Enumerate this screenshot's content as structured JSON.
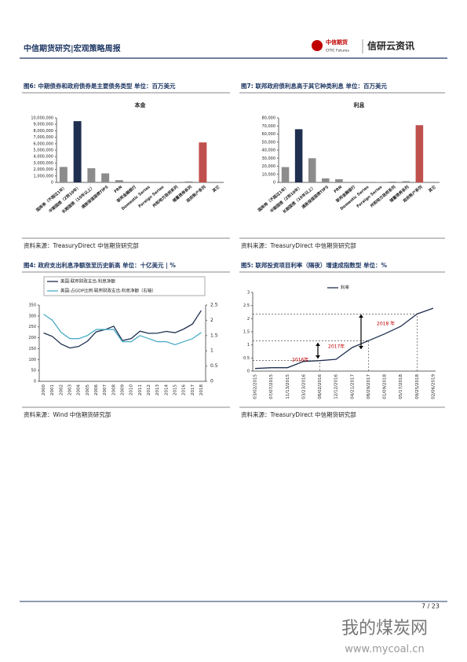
{
  "header": {
    "title": "中信期货研究|宏观策略周报",
    "logo_cn": "中信期货",
    "logo_en": "CITIC Futures",
    "brand": "信研云资讯"
  },
  "chart_data": [
    {
      "type": "bar",
      "title": "图6: 中期债券和政府债券是主要债务类型   单位：百万美元",
      "subtitle": "本金",
      "categories": [
        "国库券（不超过1年）",
        "中期国债（2到10年）",
        "长期国债（10年以上）",
        "通胀保值国债TIPS",
        "FRN",
        "联邦金融银行",
        "Domestic Series",
        "Foreign Series",
        "州和地方政府系列",
        "储蓄债券系列",
        "政府账户系列",
        "其它"
      ],
      "values": [
        2400000,
        9500000,
        2200000,
        1400000,
        350000,
        0,
        0,
        0,
        60000,
        150000,
        6200000,
        0
      ],
      "colors": [
        "#8c8c8c",
        "#1f2f4f",
        "#8c8c8c",
        "#8c8c8c",
        "#8c8c8c",
        "#8c8c8c",
        "#8c8c8c",
        "#8c8c8c",
        "#8c8c8c",
        "#8c8c8c",
        "#c0504d",
        "#8c8c8c"
      ],
      "ylim": [
        0,
        10000000
      ],
      "yticks": [
        0,
        {
          "value": 1000000,
          "label": "1,000,000"
        },
        {
          "value": 2000000,
          "label": "2,000,000"
        },
        {
          "value": 3000000,
          "label": "3,000,000"
        },
        {
          "value": 4000000,
          "label": "4,000,000"
        },
        {
          "value": 5000000,
          "label": "5,000,000"
        },
        {
          "value": 6000000,
          "label": "6,000,000"
        },
        {
          "value": 7000000,
          "label": "7,000,000"
        },
        {
          "value": 8000000,
          "label": "8,000,000"
        },
        {
          "value": 9000000,
          "label": "9,000,000"
        },
        {
          "value": 10000000,
          "label": "10,000,000"
        }
      ],
      "source": "资料来源：TreasuryDirect  中信期货研究部"
    },
    {
      "type": "bar",
      "title": "图7: 联邦政府债利息高于其它种类利息   单位：百万美元",
      "subtitle": "利息",
      "categories": [
        "国库券（不超过1年）",
        "中期国债（2到10年）",
        "长期国债（10年以上）",
        "通胀保值国债TIPS",
        "FRN",
        "联邦金融银行",
        "Domestic Series",
        "Foreign Series",
        "州和地方政府系列",
        "储蓄债券系列",
        "政府账户系列",
        "其它"
      ],
      "values": [
        19000,
        66000,
        30000,
        5000,
        4000,
        0,
        0,
        500,
        1000,
        1500,
        71000,
        0
      ],
      "colors": [
        "#8c8c8c",
        "#1f2f4f",
        "#8c8c8c",
        "#8c8c8c",
        "#8c8c8c",
        "#8c8c8c",
        "#8c8c8c",
        "#8c8c8c",
        "#8c8c8c",
        "#8c8c8c",
        "#c0504d",
        "#8c8c8c"
      ],
      "ylim": [
        0,
        80000
      ],
      "yticks": [
        0,
        {
          "value": 10000,
          "label": "10,000"
        },
        {
          "value": 20000,
          "label": "20,000"
        },
        {
          "value": 30000,
          "label": "30,000"
        },
        {
          "value": 40000,
          "label": "40,000"
        },
        {
          "value": 50000,
          "label": "50,000"
        },
        {
          "value": 60000,
          "label": "60,000"
        },
        {
          "value": 70000,
          "label": "70,000"
        },
        {
          "value": 80000,
          "label": "80,000"
        }
      ],
      "source": "资料来源：TreasuryDirect  中信期货研究部"
    },
    {
      "type": "line",
      "title": "图4: 政府支出利息净额涨至历史新高     单位：十亿美元 | %",
      "categories": [
        "2000",
        "2001",
        "2002",
        "2003",
        "2004",
        "2005",
        "2006",
        "2007",
        "2008",
        "2009",
        "2010",
        "2011",
        "2012",
        "2013",
        "2014",
        "2015",
        "2016",
        "2017",
        "2018"
      ],
      "series": [
        {
          "name": "美国:联邦财政支出:利息净额",
          "color": "#1f2f4f",
          "values": [
            222,
            206,
            171,
            153,
            160,
            184,
            227,
            237,
            253,
            187,
            196,
            230,
            220,
            221,
            229,
            223,
            240,
            263,
            325
          ]
        },
        {
          "name": "美国:占GDP比例:联邦财政支出:利息净额（右轴）",
          "color": "#4bacc6",
          "axis": "y2",
          "values": [
            2.2,
            2.0,
            1.6,
            1.4,
            1.4,
            1.5,
            1.7,
            1.7,
            1.7,
            1.3,
            1.3,
            1.5,
            1.4,
            1.3,
            1.3,
            1.2,
            1.3,
            1.4,
            1.6
          ]
        }
      ],
      "ylim": [
        0,
        350
      ],
      "yticks": [
        0,
        50,
        100,
        150,
        200,
        250,
        300,
        350
      ],
      "y2lim": [
        0,
        2.5
      ],
      "y2ticks": [
        0,
        0.5,
        1,
        1.5,
        2,
        2.5
      ],
      "source": "资料来源：Wind  中信期货研究部"
    },
    {
      "type": "line",
      "title": "图5: 联邦投资项目利率（隔夜）增速成指数型     单位：%",
      "categories": [
        "03/02/2015",
        "07/07/2015",
        "11/13/2015",
        "03/23/2016",
        "08/02/2016",
        "12/12/2016",
        "04/21/2017",
        "08/29/2017",
        "01/09/2018",
        "05/17/2018",
        "09/25/2018",
        "02/06/2019"
      ],
      "series": [
        {
          "name": "利率",
          "color": "#1f2f4f",
          "values": [
            0.1,
            0.13,
            0.13,
            0.37,
            0.4,
            0.45,
            0.9,
            1.16,
            1.42,
            1.71,
            2.18,
            2.4
          ]
        }
      ],
      "ylim": [
        0,
        3
      ],
      "yticks": [
        0,
        0.5,
        1,
        1.5,
        2,
        2.5,
        3
      ],
      "annotations": [
        "2016年",
        "2017年",
        "2018 年"
      ],
      "source": "资料来源：TreasuryDirect  中信期货研究部"
    }
  ],
  "footer": {
    "page": "7 / 23",
    "watermark": "我的煤炭网",
    "url": "www.mycoal.cn"
  }
}
